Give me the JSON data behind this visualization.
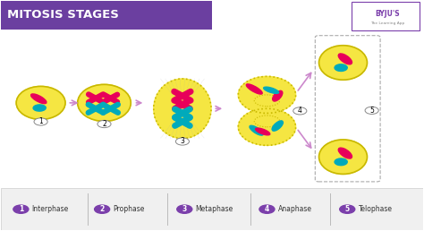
{
  "title": "MITOSIS STAGES",
  "title_bg": "#6b3fa0",
  "title_color": "#ffffff",
  "bg_color": "#ffffff",
  "cell_color": "#f5e642",
  "cell_edge": "#c8b800",
  "pink": "#e8005a",
  "blue": "#00aabb",
  "arrow_color": "#cc88cc",
  "legend_circle_color": "#7B3FAB",
  "legend_items": [
    {
      "num": "1",
      "label": "Interphase"
    },
    {
      "num": "2",
      "label": "Prophase"
    },
    {
      "num": "3",
      "label": "Metaphase"
    },
    {
      "num": "4",
      "label": "Anaphase"
    },
    {
      "num": "5",
      "label": "Telophase"
    }
  ],
  "byju_logo_color": "#7B3FAB"
}
